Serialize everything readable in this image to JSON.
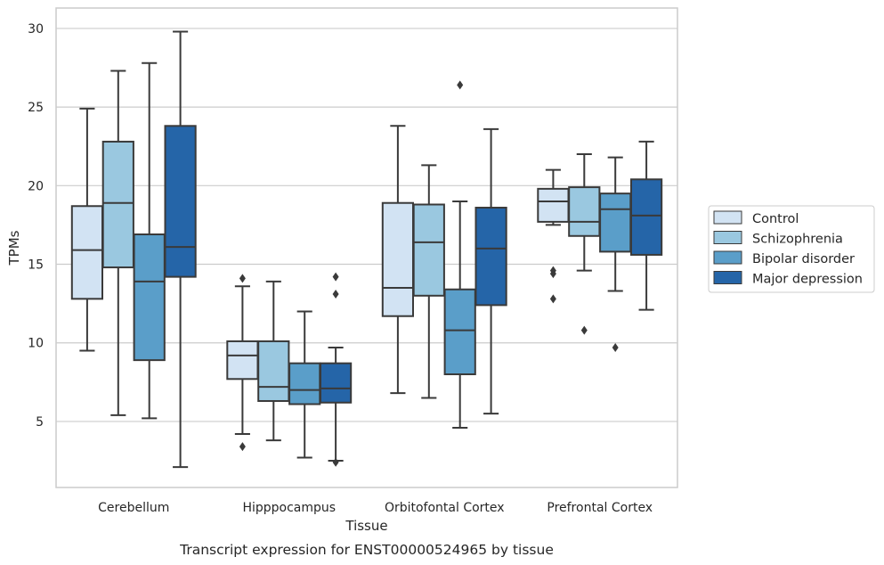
{
  "chart_data": {
    "type": "boxplot",
    "caption": "Transcript expression for ENST00000524965 by tissue",
    "xlabel": "Tissue",
    "ylabel": "TPMs",
    "ylim": [
      0.8,
      31.3
    ],
    "yticks": [
      5,
      10,
      15,
      20,
      25,
      30
    ],
    "grid": "y",
    "legend_position": "right",
    "categories": [
      "Cerebellum",
      "Hipppocampus",
      "Orbitofontal Cortex",
      "Prefrontal Cortex"
    ],
    "series": [
      {
        "name": "Control",
        "color": "#d2e3f3",
        "boxes": [
          {
            "whislo": 9.5,
            "q1": 12.8,
            "med": 15.9,
            "q3": 18.7,
            "whishi": 24.9,
            "fliers": []
          },
          {
            "whislo": 4.2,
            "q1": 7.7,
            "med": 9.2,
            "q3": 10.1,
            "whishi": 13.6,
            "fliers": [
              3.4,
              14.1
            ]
          },
          {
            "whislo": 6.8,
            "q1": 11.7,
            "med": 13.5,
            "q3": 18.9,
            "whishi": 23.8,
            "fliers": []
          },
          {
            "whislo": 17.5,
            "q1": 17.7,
            "med": 19.0,
            "q3": 19.8,
            "whishi": 21.0,
            "fliers": [
              12.8,
              14.4,
              14.6
            ]
          }
        ]
      },
      {
        "name": "Schizophrenia",
        "color": "#9ac8e0",
        "boxes": [
          {
            "whislo": 5.4,
            "q1": 14.8,
            "med": 18.9,
            "q3": 22.8,
            "whishi": 27.3,
            "fliers": []
          },
          {
            "whislo": 3.8,
            "q1": 6.3,
            "med": 7.2,
            "q3": 10.1,
            "whishi": 13.9,
            "fliers": []
          },
          {
            "whislo": 6.5,
            "q1": 13.0,
            "med": 16.4,
            "q3": 18.8,
            "whishi": 21.3,
            "fliers": []
          },
          {
            "whislo": 14.6,
            "q1": 16.8,
            "med": 17.7,
            "q3": 19.9,
            "whishi": 22.0,
            "fliers": [
              10.8
            ]
          }
        ]
      },
      {
        "name": "Bipolar disorder",
        "color": "#5a9ec9",
        "boxes": [
          {
            "whislo": 5.2,
            "q1": 8.9,
            "med": 13.9,
            "q3": 16.9,
            "whishi": 27.8,
            "fliers": []
          },
          {
            "whislo": 2.7,
            "q1": 6.1,
            "med": 7.0,
            "q3": 8.7,
            "whishi": 12.0,
            "fliers": []
          },
          {
            "whislo": 4.6,
            "q1": 8.0,
            "med": 10.8,
            "q3": 13.4,
            "whishi": 19.0,
            "fliers": [
              26.4
            ]
          },
          {
            "whislo": 13.3,
            "q1": 15.8,
            "med": 18.5,
            "q3": 19.5,
            "whishi": 21.8,
            "fliers": [
              9.7
            ]
          }
        ]
      },
      {
        "name": "Major depression",
        "color": "#2565a8",
        "boxes": [
          {
            "whislo": 2.1,
            "q1": 14.2,
            "med": 16.1,
            "q3": 23.8,
            "whishi": 29.8,
            "fliers": []
          },
          {
            "whislo": 2.5,
            "q1": 6.2,
            "med": 7.1,
            "q3": 8.7,
            "whishi": 9.7,
            "fliers": [
              2.4,
              13.1,
              14.2
            ]
          },
          {
            "whislo": 5.5,
            "q1": 12.4,
            "med": 16.0,
            "q3": 18.6,
            "whishi": 23.6,
            "fliers": []
          },
          {
            "whislo": 12.1,
            "q1": 15.6,
            "med": 18.1,
            "q3": 20.4,
            "whishi": 22.8,
            "fliers": []
          }
        ]
      }
    ]
  }
}
